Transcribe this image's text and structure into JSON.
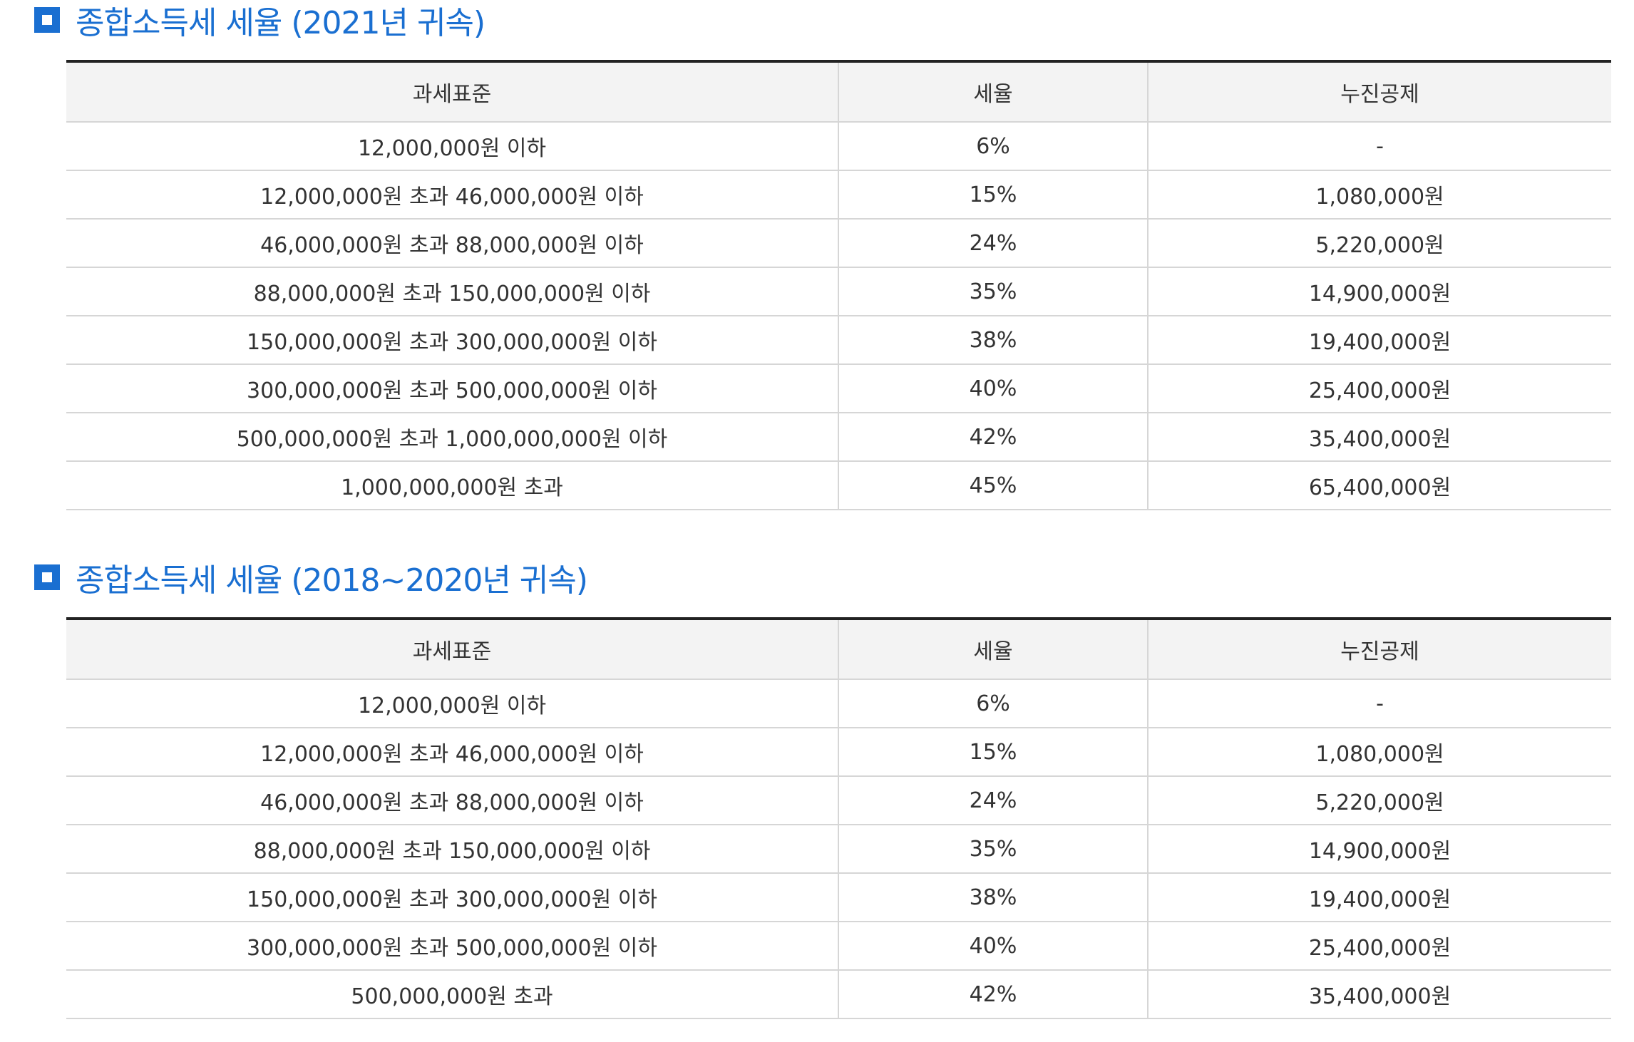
{
  "columns": {
    "bracket": "과세표준",
    "rate": "세율",
    "deduction": "누진공제"
  },
  "tables": [
    {
      "title": "종합소득세 세율 (2021년 귀속)",
      "rows": [
        {
          "bracket": "12,000,000원 이하",
          "rate": "6%",
          "deduction": "-"
        },
        {
          "bracket": "12,000,000원 초과 46,000,000원 이하",
          "rate": "15%",
          "deduction": "1,080,000원"
        },
        {
          "bracket": "46,000,000원 초과 88,000,000원 이하",
          "rate": "24%",
          "deduction": "5,220,000원"
        },
        {
          "bracket": "88,000,000원 초과 150,000,000원 이하",
          "rate": "35%",
          "deduction": "14,900,000원"
        },
        {
          "bracket": "150,000,000원 초과 300,000,000원 이하",
          "rate": "38%",
          "deduction": "19,400,000원"
        },
        {
          "bracket": "300,000,000원 초과 500,000,000원 이하",
          "rate": "40%",
          "deduction": "25,400,000원"
        },
        {
          "bracket": "500,000,000원 초과 1,000,000,000원 이하",
          "rate": "42%",
          "deduction": "35,400,000원"
        },
        {
          "bracket": "1,000,000,000원 초과",
          "rate": "45%",
          "deduction": "65,400,000원"
        }
      ]
    },
    {
      "title": "종합소득세 세율 (2018~2020년 귀속)",
      "rows": [
        {
          "bracket": "12,000,000원 이하",
          "rate": "6%",
          "deduction": "-"
        },
        {
          "bracket": "12,000,000원 초과 46,000,000원 이하",
          "rate": "15%",
          "deduction": "1,080,000원"
        },
        {
          "bracket": "46,000,000원 초과 88,000,000원 이하",
          "rate": "24%",
          "deduction": "5,220,000원"
        },
        {
          "bracket": "88,000,000원 초과 150,000,000원 이하",
          "rate": "35%",
          "deduction": "14,900,000원"
        },
        {
          "bracket": "150,000,000원 초과 300,000,000원 이하",
          "rate": "38%",
          "deduction": "19,400,000원"
        },
        {
          "bracket": "300,000,000원 초과 500,000,000원 이하",
          "rate": "40%",
          "deduction": "25,400,000원"
        },
        {
          "bracket": "500,000,000원 초과",
          "rate": "42%",
          "deduction": "35,400,000원"
        }
      ]
    }
  ],
  "colors": {
    "accent": "#1a6fd1",
    "header_bg": "#f3f3f3",
    "border": "#d6d6d6",
    "top_rule": "#222222"
  },
  "icons": {
    "heading_bullet": "square-bullet-icon"
  }
}
